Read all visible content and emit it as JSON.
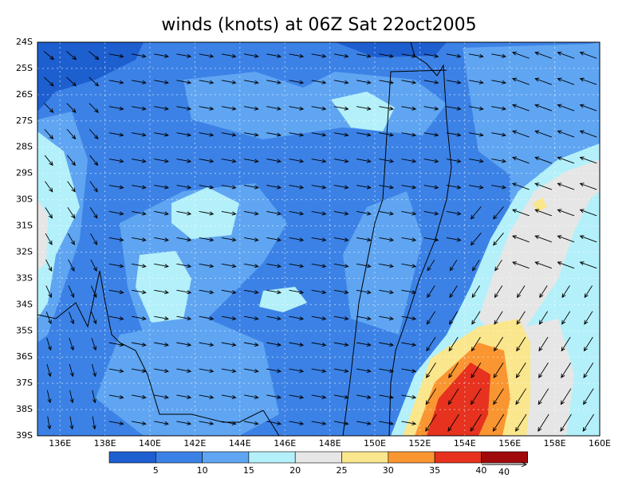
{
  "title": "winds (knots) at 06Z Sat 22oct2005",
  "map": {
    "lonlim": [
      135,
      160
    ],
    "latlim": [
      -39,
      -24
    ],
    "lon_ticks": [
      {
        "value": 136,
        "label": "136E"
      },
      {
        "value": 138,
        "label": "138E"
      },
      {
        "value": 140,
        "label": "140E"
      },
      {
        "value": 142,
        "label": "142E"
      },
      {
        "value": 144,
        "label": "144E"
      },
      {
        "value": 146,
        "label": "146E"
      },
      {
        "value": 148,
        "label": "148E"
      },
      {
        "value": 150,
        "label": "150E"
      },
      {
        "value": 152,
        "label": "152E"
      },
      {
        "value": 154,
        "label": "154E"
      },
      {
        "value": 156,
        "label": "156E"
      },
      {
        "value": 158,
        "label": "158E"
      },
      {
        "value": 160,
        "label": "160E"
      }
    ],
    "lat_ticks": [
      {
        "value": -24,
        "label": "24S"
      },
      {
        "value": -25,
        "label": "25S"
      },
      {
        "value": -26,
        "label": "26S"
      },
      {
        "value": -27,
        "label": "27S"
      },
      {
        "value": -28,
        "label": "28S"
      },
      {
        "value": -29,
        "label": "29S"
      },
      {
        "value": -30,
        "label": "30S"
      },
      {
        "value": -31,
        "label": "31S"
      },
      {
        "value": -32,
        "label": "32S"
      },
      {
        "value": -33,
        "label": "33S"
      },
      {
        "value": -34,
        "label": "34S"
      },
      {
        "value": -35,
        "label": "35S"
      },
      {
        "value": -36,
        "label": "36S"
      },
      {
        "value": -37,
        "label": "37S"
      },
      {
        "value": -38,
        "label": "38S"
      },
      {
        "value": -39,
        "label": "39S"
      }
    ]
  },
  "colorbar": {
    "levels": [
      5,
      10,
      15,
      20,
      25,
      30,
      35,
      40
    ],
    "colors": [
      "#1e5fd0",
      "#3c82e6",
      "#5fa5f2",
      "#b4f0fa",
      "#e6e6e6",
      "#fae68c",
      "#fa9632",
      "#e6321e",
      "#a00a0a"
    ]
  },
  "reference_vector": {
    "value": 40
  }
}
